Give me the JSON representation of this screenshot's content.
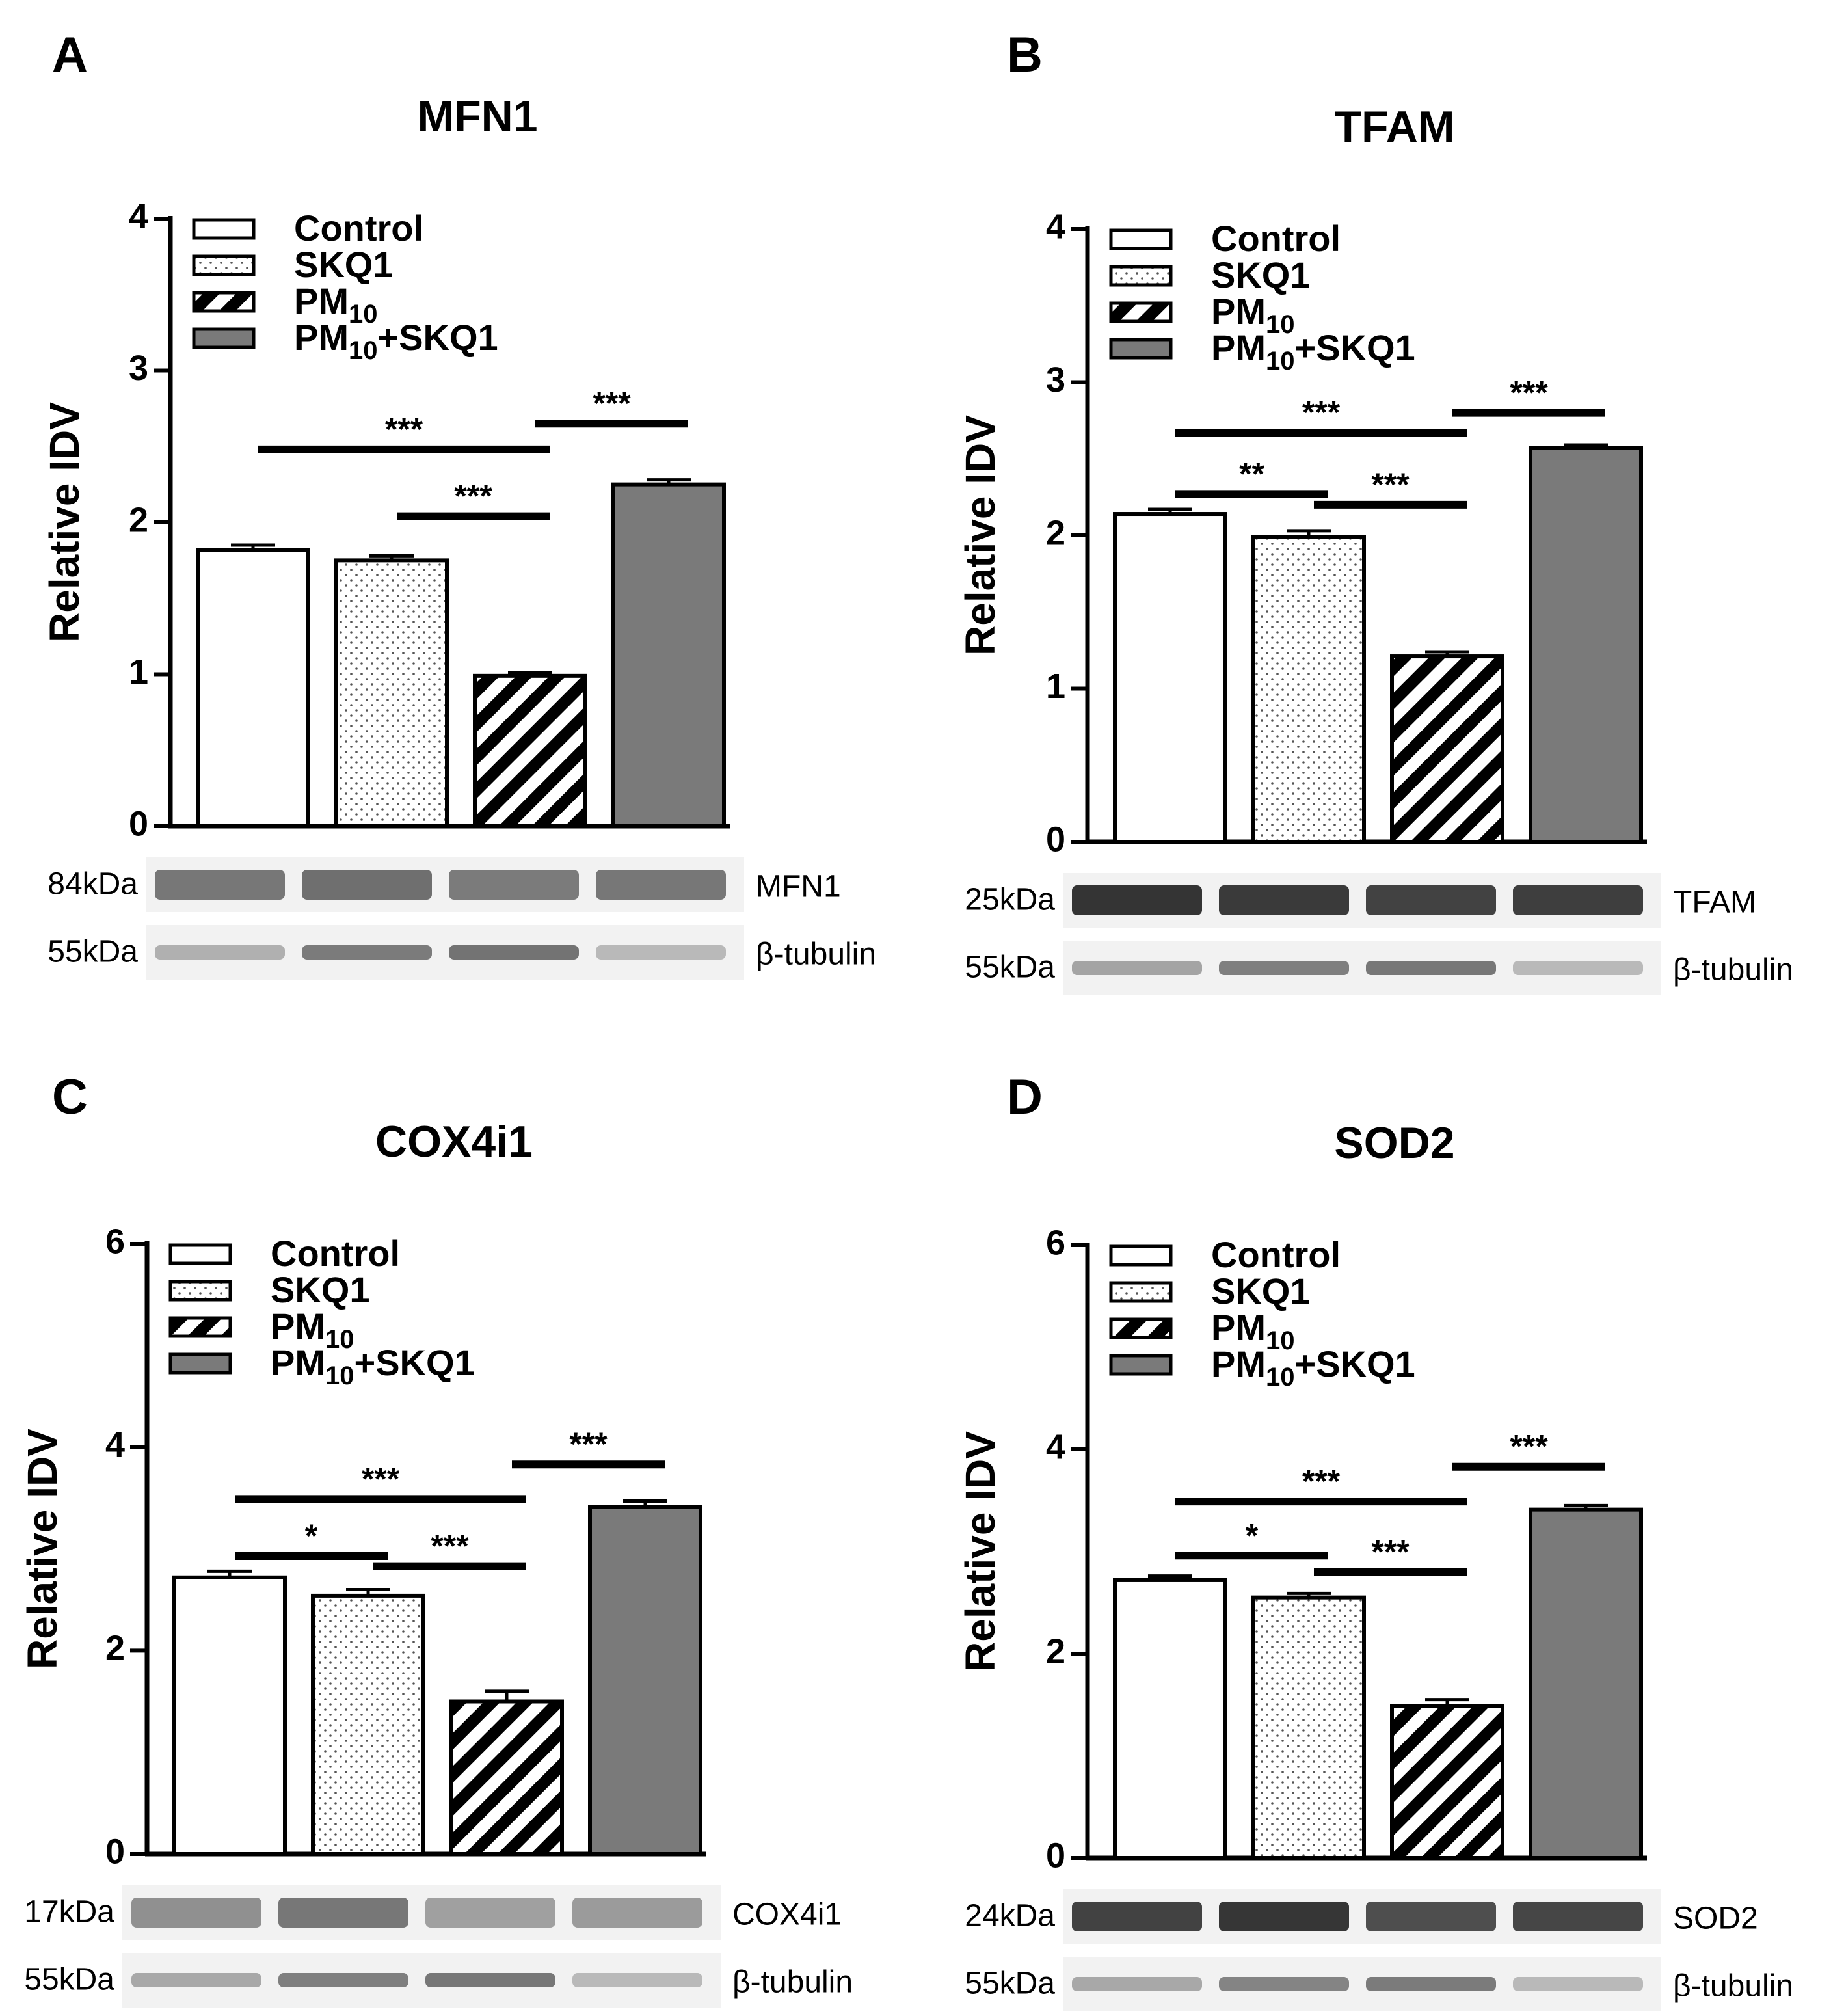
{
  "chart_data": [
    {
      "panel": "A",
      "type": "bar",
      "title": "MFN1",
      "ylabel": "Relative IDV",
      "ylim": [
        0,
        4
      ],
      "yticks": [
        "0",
        "1",
        "2",
        "3",
        "4"
      ],
      "legend_position": "top-left",
      "legend": [
        {
          "pre": "Control",
          "sub": "",
          "post": "",
          "fill": "white"
        },
        {
          "pre": "SKQ1",
          "sub": "",
          "post": "",
          "fill": "dots"
        },
        {
          "pre": "PM",
          "sub": "10",
          "post": "",
          "fill": "stripes"
        },
        {
          "pre": "PM",
          "sub": "10",
          "post": "+SKQ1",
          "fill": "gray"
        }
      ],
      "categories": [
        "Control",
        "SKQ1",
        "PM10",
        "PM10+SKQ1"
      ],
      "values": [
        1.82,
        1.75,
        0.99,
        2.25
      ],
      "errors": [
        0.03,
        0.03,
        0.02,
        0.03
      ],
      "significance": [
        {
          "from": 0,
          "to": 2,
          "y": 2.48,
          "label": "***"
        },
        {
          "from": 1,
          "to": 2,
          "y": 2.04,
          "label": "***"
        },
        {
          "from": 2,
          "to": 3,
          "y": 2.65,
          "label": "***"
        }
      ],
      "blots": [
        {
          "size": "84kDa",
          "name": "MFN1",
          "intensity": [
            0.62,
            0.66,
            0.6,
            0.62
          ]
        },
        {
          "size": "55kDa",
          "name": "β-tubulin",
          "intensity": [
            0.34,
            0.6,
            0.64,
            0.3
          ]
        }
      ]
    },
    {
      "panel": "B",
      "type": "bar",
      "title": "TFAM",
      "ylabel": "Relative IDV",
      "ylim": [
        0,
        4
      ],
      "yticks": [
        "0",
        "1",
        "2",
        "3",
        "4"
      ],
      "legend_position": "top-left",
      "legend": [
        {
          "pre": "Control",
          "sub": "",
          "post": "",
          "fill": "white"
        },
        {
          "pre": "SKQ1",
          "sub": "",
          "post": "",
          "fill": "dots"
        },
        {
          "pre": "PM",
          "sub": "10",
          "post": "",
          "fill": "stripes"
        },
        {
          "pre": "PM",
          "sub": "10",
          "post": "+SKQ1",
          "fill": "gray"
        }
      ],
      "categories": [
        "Control",
        "SKQ1",
        "PM10",
        "PM10+SKQ1"
      ],
      "values": [
        2.14,
        1.99,
        1.21,
        2.57
      ],
      "errors": [
        0.03,
        0.04,
        0.03,
        0.02
      ],
      "significance": [
        {
          "from": 0,
          "to": 2,
          "y": 2.67,
          "label": "***"
        },
        {
          "from": 0,
          "to": 1,
          "y": 2.27,
          "label": "**"
        },
        {
          "from": 1,
          "to": 2,
          "y": 2.2,
          "label": "***"
        },
        {
          "from": 2,
          "to": 3,
          "y": 2.8,
          "label": "***"
        }
      ],
      "blots": [
        {
          "size": "25kDa",
          "name": "TFAM",
          "intensity": [
            0.95,
            0.92,
            0.88,
            0.9
          ]
        },
        {
          "size": "55kDa",
          "name": "β-tubulin",
          "intensity": [
            0.4,
            0.58,
            0.62,
            0.3
          ]
        }
      ]
    },
    {
      "panel": "C",
      "type": "bar",
      "title": "COX4i1",
      "ylabel": "Relative IDV",
      "ylim": [
        0,
        6
      ],
      "yticks": [
        "0",
        "2",
        "4",
        "6"
      ],
      "legend_position": "top-left",
      "legend": [
        {
          "pre": "Control",
          "sub": "",
          "post": "",
          "fill": "white"
        },
        {
          "pre": "SKQ1",
          "sub": "",
          "post": "",
          "fill": "dots"
        },
        {
          "pre": "PM",
          "sub": "10",
          "post": "",
          "fill": "stripes"
        },
        {
          "pre": "PM",
          "sub": "10",
          "post": "+SKQ1",
          "fill": "gray"
        }
      ],
      "categories": [
        "Control",
        "SKQ1",
        "PM10",
        "PM10+SKQ1"
      ],
      "values": [
        2.72,
        2.54,
        1.5,
        3.41
      ],
      "errors": [
        0.06,
        0.06,
        0.1,
        0.06
      ],
      "significance": [
        {
          "from": 0,
          "to": 2,
          "y": 3.49,
          "label": "***"
        },
        {
          "from": 0,
          "to": 1,
          "y": 2.93,
          "label": "*"
        },
        {
          "from": 1,
          "to": 2,
          "y": 2.83,
          "label": "***"
        },
        {
          "from": 2,
          "to": 3,
          "y": 3.83,
          "label": "***"
        }
      ],
      "blots": [
        {
          "size": "17kDa",
          "name": "COX4i1",
          "intensity": [
            0.5,
            0.62,
            0.42,
            0.44
          ]
        },
        {
          "size": "55kDa",
          "name": "β-tubulin",
          "intensity": [
            0.38,
            0.58,
            0.62,
            0.3
          ]
        }
      ]
    },
    {
      "panel": "D",
      "type": "bar",
      "title": "SOD2",
      "ylabel": "Relative IDV",
      "ylim": [
        0,
        6
      ],
      "yticks": [
        "0",
        "2",
        "4",
        "6"
      ],
      "legend_position": "top-left",
      "legend": [
        {
          "pre": "Control",
          "sub": "",
          "post": "",
          "fill": "white"
        },
        {
          "pre": "SKQ1",
          "sub": "",
          "post": "",
          "fill": "dots"
        },
        {
          "pre": "PM",
          "sub": "10",
          "post": "",
          "fill": "stripes"
        },
        {
          "pre": "PM",
          "sub": "10",
          "post": "+SKQ1",
          "fill": "gray"
        }
      ],
      "categories": [
        "Control",
        "SKQ1",
        "PM10",
        "PM10+SKQ1"
      ],
      "values": [
        2.72,
        2.55,
        1.49,
        3.41
      ],
      "errors": [
        0.04,
        0.04,
        0.06,
        0.04
      ],
      "significance": [
        {
          "from": 0,
          "to": 2,
          "y": 3.49,
          "label": "***"
        },
        {
          "from": 0,
          "to": 1,
          "y": 2.96,
          "label": "*"
        },
        {
          "from": 1,
          "to": 2,
          "y": 2.8,
          "label": "***"
        },
        {
          "from": 2,
          "to": 3,
          "y": 3.83,
          "label": "***"
        }
      ],
      "blots": [
        {
          "size": "24kDa",
          "name": "SOD2",
          "intensity": [
            0.88,
            0.94,
            0.82,
            0.86
          ]
        },
        {
          "size": "55kDa",
          "name": "β-tubulin",
          "intensity": [
            0.38,
            0.56,
            0.6,
            0.3
          ]
        }
      ]
    }
  ]
}
